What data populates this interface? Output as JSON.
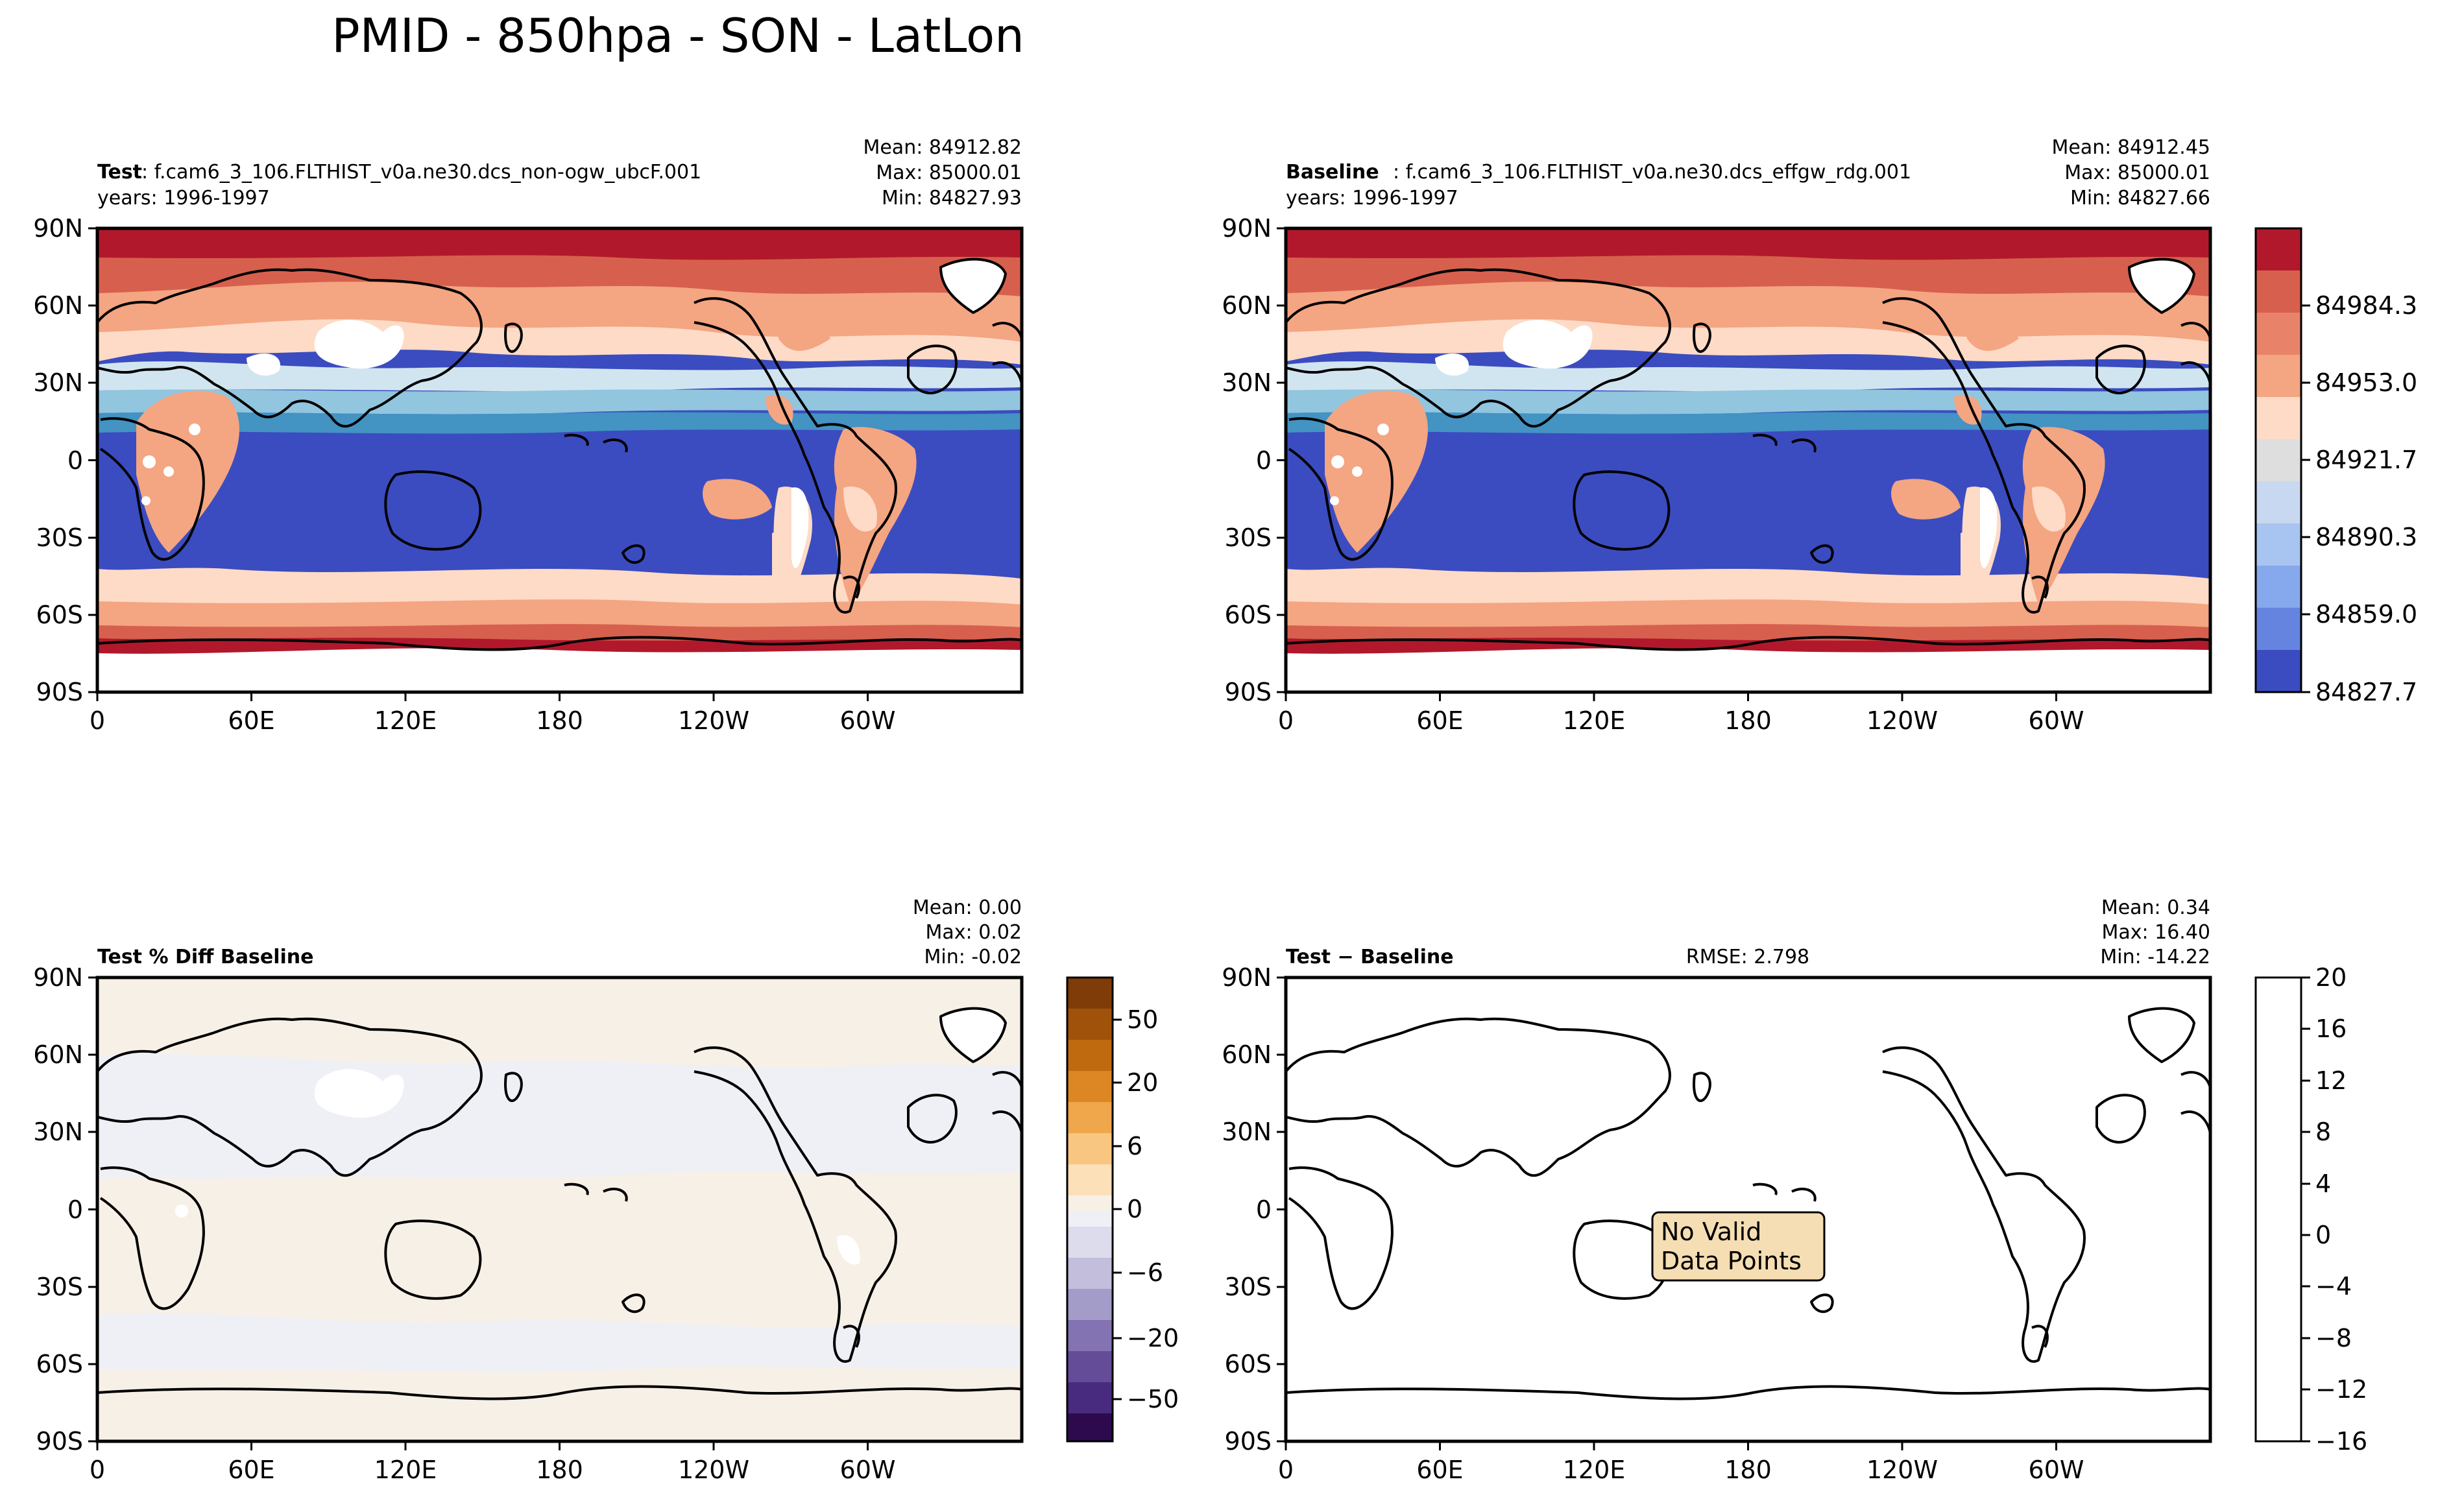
{
  "title": "PMID - 850hpa - SON - LatLon",
  "colors": {
    "warm": [
      "#b2182b",
      "#d6604d",
      "#f4a582",
      "#fddbc7"
    ],
    "neutral": "#dedede",
    "cool": [
      "#d1e5f0",
      "#92c5de",
      "#4393c3",
      "#3b4cc0"
    ],
    "land_white": "#ffffff",
    "pct_beige": "#f7f0e6",
    "pct_lavender": "#eef0f6",
    "nodata_box": "#f5deb3"
  },
  "chart_data": [
    {
      "type": "heatmap",
      "id": "test",
      "label_bold": "Test",
      "label_text": ": f.cam6_3_106.FLTHIST_v0a.ne30.dcs_non-ogw_ubcF.001",
      "years": "years: 1996-1997",
      "stats": {
        "mean": "Mean: 84912.82",
        "max": "Max: 85000.01",
        "min": "Min: 84827.93"
      },
      "x_ticks": [
        "0",
        "60E",
        "120E",
        "180",
        "120W",
        "60W"
      ],
      "y_ticks": [
        "90N",
        "60N",
        "30N",
        "0",
        "30S",
        "60S",
        "90S"
      ]
    },
    {
      "type": "heatmap",
      "id": "baseline",
      "label_bold": "Baseline",
      "label_text": ": f.cam6_3_106.FLTHIST_v0a.ne30.dcs_effgw_rdg.001",
      "years": "years: 1996-1997",
      "stats": {
        "mean": "Mean: 84912.45",
        "max": "Max: 85000.01",
        "min": "Min: 84827.66"
      },
      "x_ticks": [
        "0",
        "60E",
        "120E",
        "180",
        "120W",
        "60W"
      ],
      "y_ticks": [
        "90N",
        "60N",
        "30N",
        "0",
        "30S",
        "60S",
        "90S"
      ],
      "colorbar": {
        "ticks": [
          "84827.7",
          "84859.0",
          "84890.3",
          "84921.7",
          "84953.0",
          "84984.3"
        ]
      }
    },
    {
      "type": "heatmap",
      "id": "pctdiff",
      "label_bold": "Test % Diff Baseline",
      "stats": {
        "mean": "Mean:  0.00",
        "max": "Max:  0.02",
        "min": "Min: -0.02"
      },
      "x_ticks": [
        "0",
        "60E",
        "120E",
        "180",
        "120W",
        "60W"
      ],
      "y_ticks": [
        "90N",
        "60N",
        "30N",
        "0",
        "30S",
        "60S",
        "90S"
      ],
      "colorbar": {
        "ticks": [
          "−50",
          "−20",
          "−6",
          "0",
          "6",
          "20",
          "50"
        ]
      }
    },
    {
      "type": "heatmap",
      "id": "diff",
      "label_bold": "Test − Baseline",
      "rmse": "RMSE: 2.798",
      "stats": {
        "mean": "Mean:  0.34",
        "max": "Max: 16.40",
        "min": "Min: -14.22"
      },
      "x_ticks": [
        "0",
        "60E",
        "120E",
        "180",
        "120W",
        "60W"
      ],
      "y_ticks": [
        "90N",
        "60N",
        "30N",
        "0",
        "30S",
        "60S",
        "90S"
      ],
      "no_data": [
        "No Valid",
        "Data Points"
      ],
      "colorbar": {
        "ticks": [
          "−16",
          "−12",
          "−8",
          "−4",
          "0",
          "4",
          "8",
          "12",
          "16",
          "20"
        ]
      }
    }
  ]
}
